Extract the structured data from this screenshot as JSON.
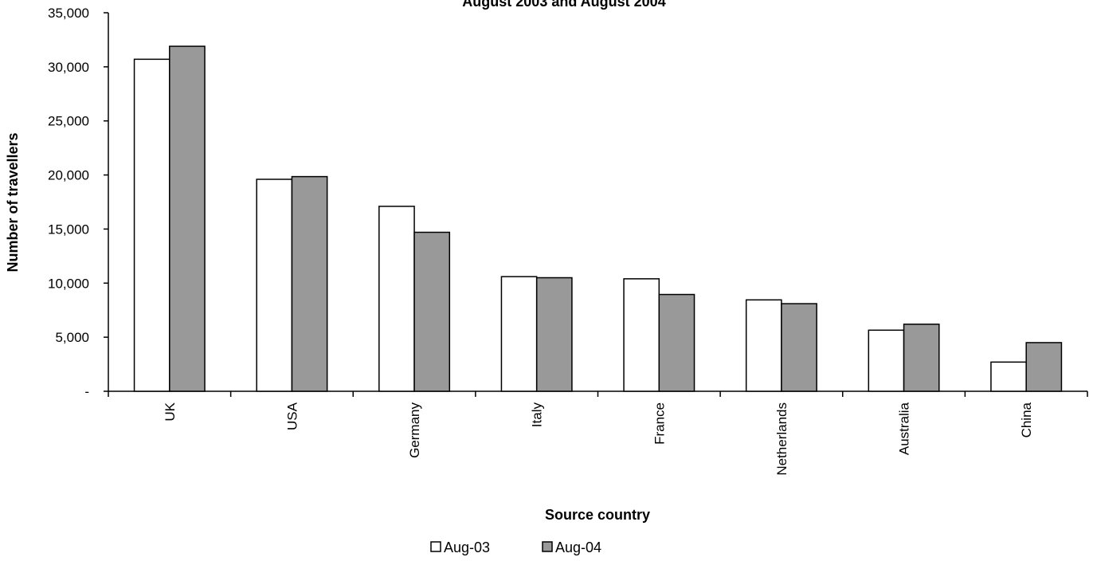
{
  "chart_data": {
    "type": "bar",
    "title": "August 2003 and August 2004",
    "xlabel": "Source country",
    "ylabel": "Number of travellers",
    "ylim": [
      0,
      35000
    ],
    "yticks": [
      {
        "value": 0,
        "label": "-"
      },
      {
        "value": 5000,
        "label": "5,000"
      },
      {
        "value": 10000,
        "label": "10,000"
      },
      {
        "value": 15000,
        "label": "15,000"
      },
      {
        "value": 20000,
        "label": "20,000"
      },
      {
        "value": 25000,
        "label": "25,000"
      },
      {
        "value": 30000,
        "label": "30,000"
      },
      {
        "value": 35000,
        "label": "35,000"
      }
    ],
    "categories": [
      "UK",
      "USA",
      "Germany",
      "Italy",
      "France",
      "Netherlands",
      "Australia",
      "China"
    ],
    "series": [
      {
        "name": "Aug-03",
        "color": "#ffffff",
        "values": [
          30700,
          19600,
          17100,
          10600,
          10400,
          8450,
          5650,
          2700
        ]
      },
      {
        "name": "Aug-04",
        "color": "#999999",
        "values": [
          31900,
          19850,
          14700,
          10500,
          8950,
          8100,
          6200,
          4500
        ]
      }
    ],
    "grid": false,
    "legend_position": "bottom"
  }
}
